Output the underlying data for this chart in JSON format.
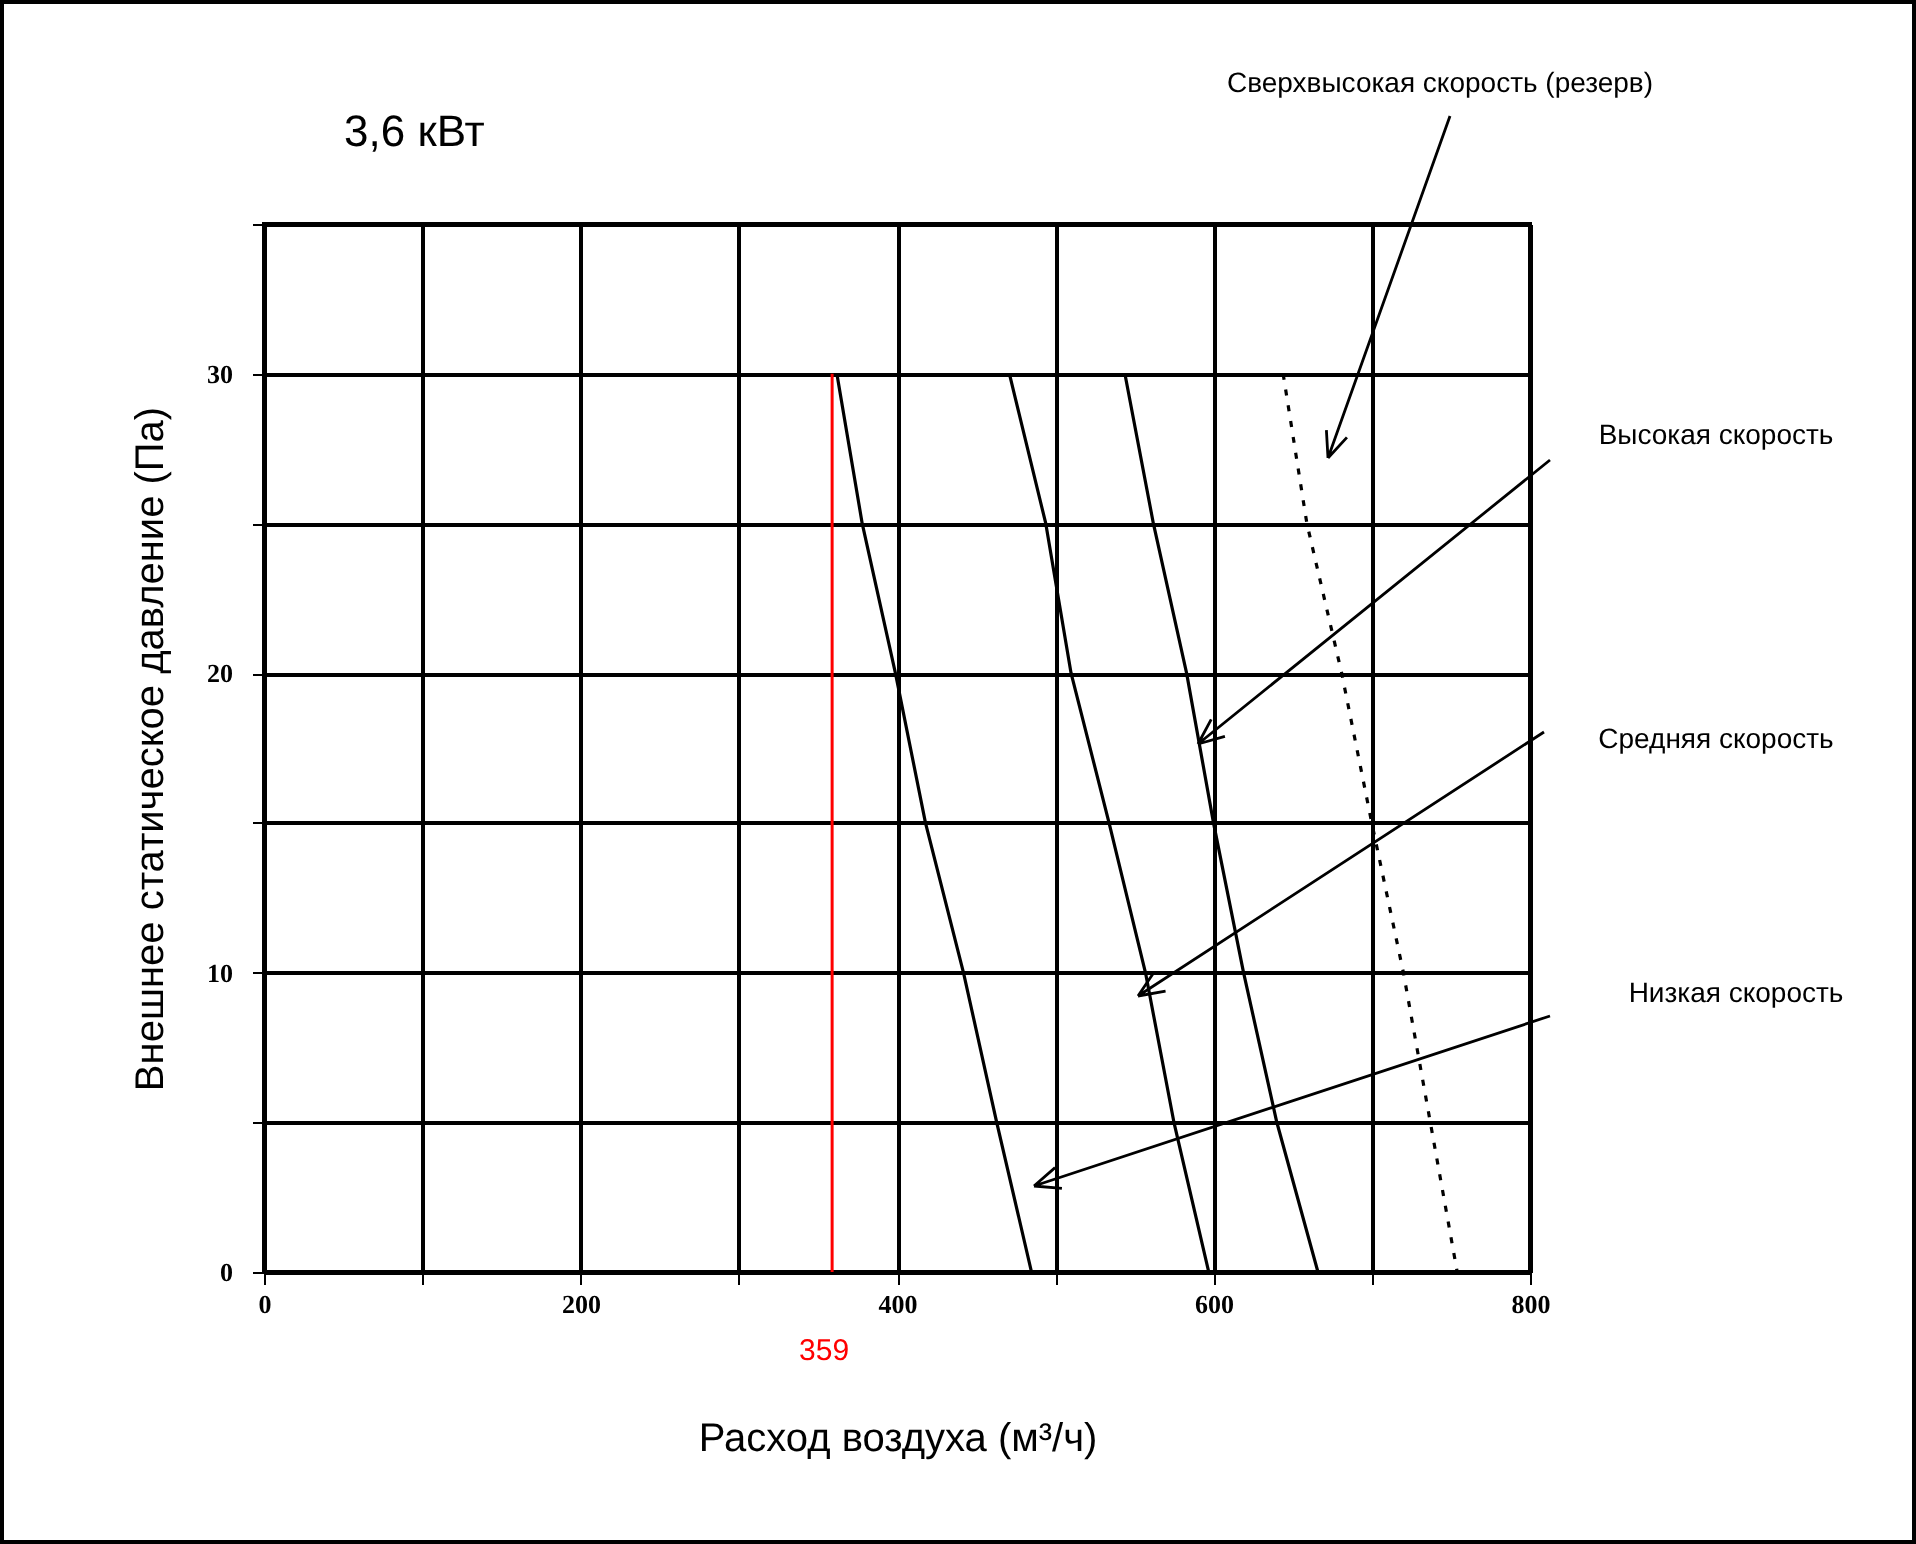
{
  "chart_data": {
    "type": "line",
    "title": "3,6 кВт",
    "xlabel": "Расход воздуха (м³/ч)",
    "ylabel": "Внешнее статическое давление (Па)",
    "series": [
      {
        "color": "#000000",
        "x": [
          362,
          378,
          399,
          418,
          442,
          463,
          485
        ],
        "values": [
          30,
          25,
          20,
          15,
          10,
          5,
          0
        ]
      },
      {
        "color": "#000000",
        "x": [
          471,
          494,
          510,
          534,
          557,
          575,
          597
        ],
        "values": [
          30,
          25,
          20,
          15,
          10,
          5,
          0
        ]
      },
      {
        "color": "#000000",
        "x": [
          544,
          562,
          583,
          600,
          619,
          640,
          666
        ],
        "values": [
          30,
          25,
          20,
          15,
          10,
          5,
          0
        ]
      },
      {
        "color": "#000000",
        "line_style": "dotted",
        "x": [
          644,
          659,
          681,
          700,
          720,
          737,
          754
        ],
        "values": [
          30,
          25,
          20,
          15,
          10,
          5,
          0
        ]
      }
    ],
    "xlim": [
      0,
      800
    ],
    "xticks": [
      0,
      {
        "value": 100,
        "label": null
      },
      200,
      {
        "value": 300,
        "label": null
      },
      400,
      {
        "value": 500,
        "label": null
      },
      600,
      {
        "value": 700,
        "label": null
      },
      800
    ],
    "ylim": [
      0,
      35
    ],
    "yticks": [
      0,
      {
        "value": 5,
        "label": null
      },
      10,
      {
        "value": 15,
        "label": null
      },
      20,
      {
        "value": 25,
        "label": null
      },
      30,
      {
        "value": 35,
        "label": null
      }
    ],
    "ref_lines": [
      {
        "axis": "x",
        "value": 359,
        "label": "359",
        "color": "#ff0000"
      }
    ],
    "annotations": [
      "Сверхвысокая скорость  (резерв)",
      "Высокая скорость",
      "Средняя скорость",
      "Низкая скорость"
    ],
    "grid": true,
    "legend": false,
    "line_style": "solid"
  }
}
